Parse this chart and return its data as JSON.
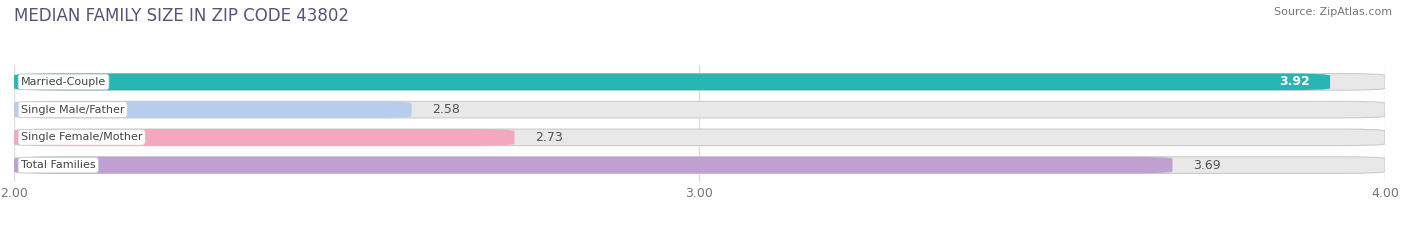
{
  "title": "MEDIAN FAMILY SIZE IN ZIP CODE 43802",
  "source": "Source: ZipAtlas.com",
  "categories": [
    "Married-Couple",
    "Single Male/Father",
    "Single Female/Mother",
    "Total Families"
  ],
  "values": [
    3.92,
    2.58,
    2.73,
    3.69
  ],
  "bar_colors": [
    "#2ab5b5",
    "#b8ccee",
    "#f4a8c0",
    "#c0a0d0"
  ],
  "xlim_min": 2.0,
  "xlim_max": 4.0,
  "xticks": [
    2.0,
    3.0,
    4.0
  ],
  "xtick_labels": [
    "2.00",
    "3.00",
    "4.00"
  ],
  "background_color": "#ffffff",
  "bar_background_color": "#e8e8e8",
  "title_fontsize": 12,
  "source_fontsize": 8,
  "bar_label_fontsize": 9,
  "category_label_fontsize": 8,
  "tick_fontsize": 9,
  "bar_height": 0.6,
  "value_inside_threshold": 3.75,
  "grid_color": "#dddddd"
}
